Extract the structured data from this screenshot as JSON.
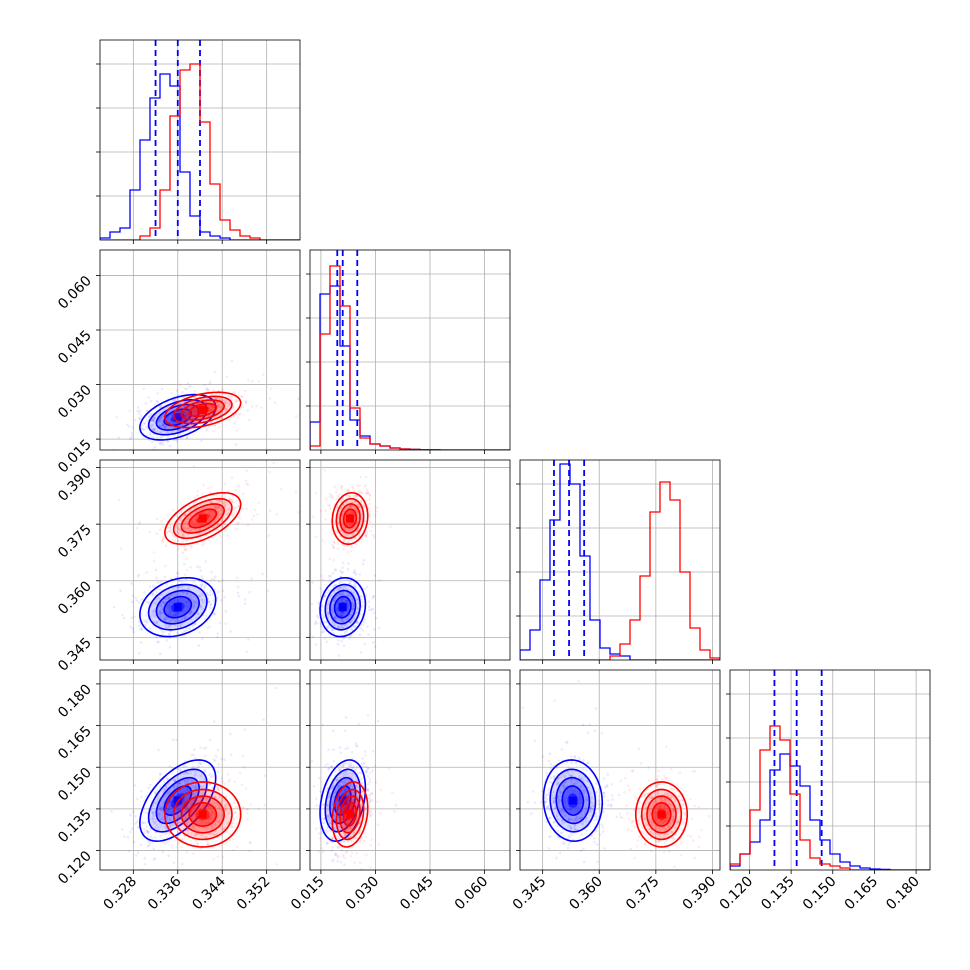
{
  "chart_data": {
    "type": "corner",
    "params": [
      {
        "range": [
          0.322,
          0.358
        ],
        "ticks": [
          "0.328",
          "0.336",
          "0.344",
          "0.352"
        ]
      },
      {
        "range": [
          0.012,
          0.067
        ],
        "ticks": [
          "0.015",
          "0.030",
          "0.045",
          "0.060"
        ]
      },
      {
        "range": [
          0.339,
          0.392
        ],
        "ticks": [
          "0.345",
          "0.360",
          "0.375",
          "0.390"
        ]
      },
      {
        "range": [
          0.113,
          0.185
        ],
        "ticks": [
          "0.120",
          "0.135",
          "0.150",
          "0.165",
          "0.180"
        ]
      }
    ],
    "grid": true,
    "colors": {
      "blue": "#0000ff",
      "red": "#ff0000"
    },
    "series": [
      {
        "color": "#0000ff",
        "mean": [
          0.336,
          0.021,
          0.353,
          0.138
        ],
        "sd": [
          0.0035,
          0.0032,
          0.004,
          0.0075
        ],
        "quantiles": [
          [
            0.332,
            0.336,
            0.34
          ],
          [
            0.0195,
            0.021,
            0.025
          ],
          [
            0.348,
            0.352,
            0.356
          ],
          [
            0.129,
            0.137,
            0.146
          ]
        ],
        "hist": [
          [
            0.01,
            0.04,
            0.06,
            0.25,
            0.5,
            0.71,
            0.83,
            0.77,
            0.34,
            0.12,
            0.04,
            0.02,
            0.01,
            0.0,
            0.0,
            0.0,
            0.0,
            0.0,
            0.0,
            0.0
          ],
          [
            0.14,
            0.78,
            0.82,
            0.52,
            0.15,
            0.07,
            0.03,
            0.02,
            0.01,
            0.005,
            0.003,
            0.002,
            0.001,
            0.0,
            0.0,
            0.0,
            0.0,
            0.0,
            0.0,
            0.0
          ],
          [
            0.05,
            0.15,
            0.4,
            0.7,
            0.98,
            0.88,
            0.52,
            0.2,
            0.06,
            0.03,
            0.02,
            0.0,
            0.0,
            0.0,
            0.0,
            0.0,
            0.0,
            0.0,
            0.0,
            0.0
          ],
          [
            0.02,
            0.08,
            0.14,
            0.25,
            0.5,
            0.58,
            0.52,
            0.42,
            0.25,
            0.15,
            0.08,
            0.04,
            0.02,
            0.01,
            0.005,
            0.003,
            0.0,
            0.0,
            0.0,
            0.0
          ]
        ],
        "contour_radii": [
          0.35,
          0.7,
          1.1,
          1.5,
          1.95
        ],
        "corr": {
          "0-1": 0.45,
          "0-2": 0.25,
          "0-3": 0.55,
          "1-2": 0.1,
          "1-3": 0.3,
          "2-3": -0.05
        }
      },
      {
        "color": "#ff0000",
        "mean": [
          0.3405,
          0.023,
          0.3765,
          0.133
        ],
        "sd": [
          0.0035,
          0.0025,
          0.0035,
          0.006
        ],
        "quantiles": [],
        "hist": [
          [
            0.0,
            0.0,
            0.0,
            0.0,
            0.02,
            0.06,
            0.25,
            0.62,
            0.85,
            0.88,
            0.59,
            0.28,
            0.1,
            0.05,
            0.02,
            0.01,
            0.0,
            0.0,
            0.0,
            0.0
          ],
          [
            0.02,
            0.58,
            0.92,
            0.72,
            0.21,
            0.06,
            0.03,
            0.02,
            0.01,
            0.005,
            0.003,
            0.002,
            0.0,
            0.0,
            0.0,
            0.0,
            0.0,
            0.0,
            0.0,
            0.0
          ],
          [
            0.0,
            0.0,
            0.0,
            0.0,
            0.0,
            0.0,
            0.0,
            0.0,
            0.0,
            0.02,
            0.08,
            0.2,
            0.42,
            0.74,
            0.89,
            0.8,
            0.44,
            0.16,
            0.05,
            0.01
          ],
          [
            0.03,
            0.08,
            0.3,
            0.6,
            0.72,
            0.65,
            0.38,
            0.15,
            0.06,
            0.03,
            0.02,
            0.01,
            0.0,
            0.0,
            0.0,
            0.0,
            0.0,
            0.0,
            0.0,
            0.0
          ]
        ],
        "contour_radii": [
          0.35,
          0.7,
          1.1,
          1.5,
          1.95
        ],
        "corr": {
          "0-1": 0.4,
          "0-2": 0.55,
          "0-3": 0.0,
          "1-2": 0.1,
          "1-3": 0.2,
          "2-3": 0.0
        }
      }
    ]
  }
}
